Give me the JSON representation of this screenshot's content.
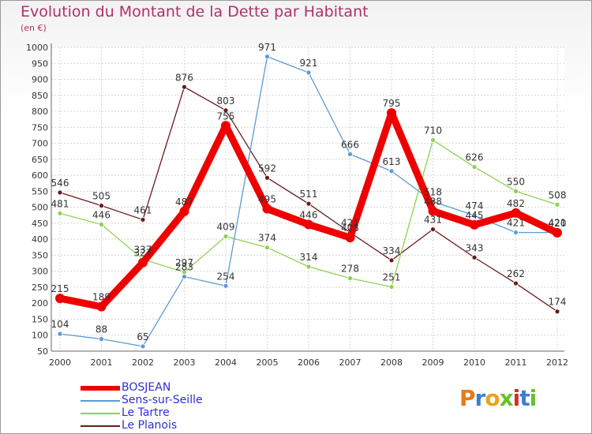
{
  "header": {
    "title": "Evolution du Montant de la Dette par Habitant",
    "subtitle": "(en €)"
  },
  "logo": {
    "text": "Proxiti",
    "colors": [
      "#e87a1c",
      "#3a7fd0",
      "#e8a31c",
      "#66c12c",
      "#d62c2c",
      "#3a7fd0",
      "#66c12c"
    ]
  },
  "chart_data": {
    "type": "line",
    "x": [
      "2000",
      "2001",
      "2002",
      "2003",
      "2004",
      "2005",
      "2006",
      "2007",
      "2008",
      "2009",
      "2010",
      "2011",
      "2012"
    ],
    "ylim": [
      50,
      1000
    ],
    "yticks": [
      50,
      100,
      150,
      200,
      250,
      300,
      350,
      400,
      450,
      500,
      550,
      600,
      650,
      700,
      750,
      800,
      850,
      900,
      950,
      1000
    ],
    "grid": true,
    "legend_position": "bottom-left",
    "series": [
      {
        "name": "BOSJEAN",
        "color": "#ee0000",
        "values": [
          215,
          189,
          327,
          487,
          755,
          495,
          446,
          405,
          795,
          488,
          445,
          482,
          420
        ],
        "labels": [
          "215",
          "189",
          "327",
          "487",
          "755",
          "495",
          "446",
          "405",
          "795",
          "488",
          "445",
          "482",
          "420"
        ]
      },
      {
        "name": "Sens-sur-Seille",
        "color": "#5b9bd5",
        "values": [
          104,
          88,
          65,
          283,
          254,
          971,
          921,
          666,
          613,
          518,
          474,
          421,
          421
        ],
        "labels": [
          "104",
          "88",
          "65",
          "283",
          "254",
          "971",
          "921",
          "666",
          "613",
          "518",
          "474",
          "421",
          "421"
        ]
      },
      {
        "name": "Le Tartre",
        "color": "#8fd14f",
        "values": [
          481,
          446,
          337,
          297,
          409,
          374,
          314,
          278,
          251,
          710,
          626,
          550,
          508
        ],
        "labels": [
          "481",
          "446",
          "337",
          "297",
          "409",
          "374",
          "314",
          "278",
          "251",
          "710",
          "626",
          "550",
          "508"
        ]
      },
      {
        "name": "Le Planois",
        "color": "#6b1a1a",
        "values": [
          546,
          505,
          461,
          876,
          803,
          592,
          511,
          421,
          334,
          431,
          343,
          262,
          174
        ],
        "labels": [
          "546",
          "505",
          "461",
          "876",
          "803",
          "592",
          "511",
          "421",
          "334",
          "431",
          "343",
          "262",
          "174"
        ]
      }
    ]
  }
}
